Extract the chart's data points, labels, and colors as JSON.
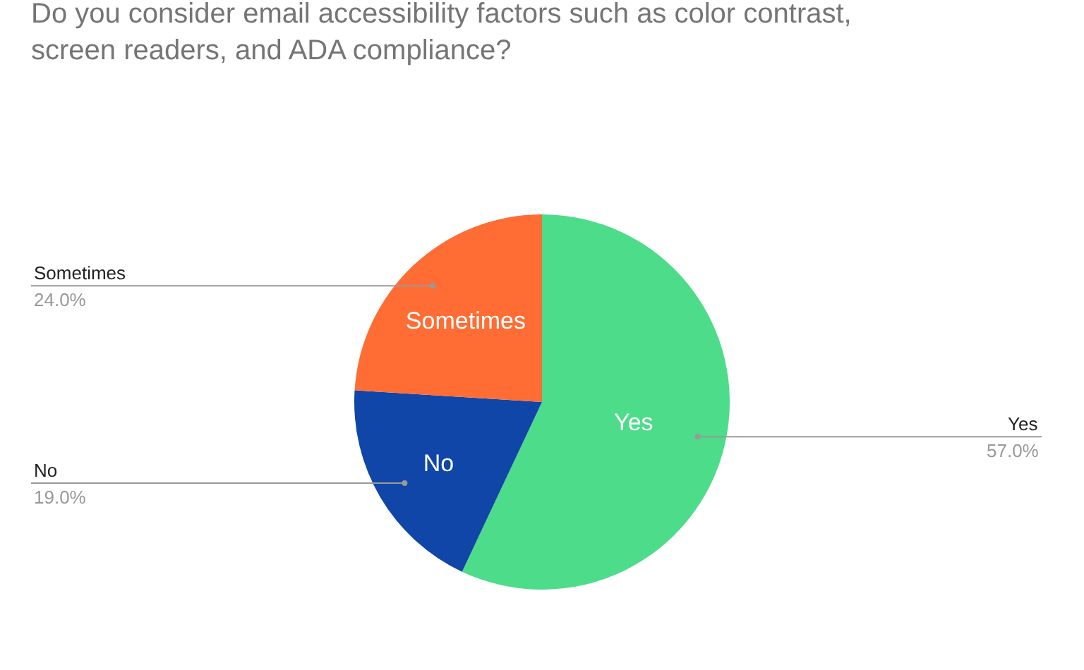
{
  "chart_data": {
    "type": "pie",
    "title": "Do you consider email accessibility factors such as color contrast, screen readers, and ADA compliance?",
    "categories": [
      "Yes",
      "No",
      "Sometimes"
    ],
    "values": [
      57.0,
      19.0,
      24.0
    ],
    "value_labels": [
      "57.0%",
      "19.0%",
      "24.0%"
    ],
    "colors": [
      "#4ddc8a",
      "#0f46a8",
      "#ff6d35"
    ],
    "legend": false
  }
}
